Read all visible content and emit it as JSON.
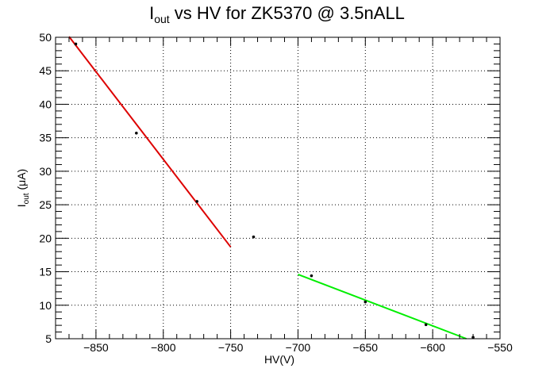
{
  "chart_data": {
    "type": "scatter",
    "title": {
      "main": "I",
      "sub": "out",
      "rest": " vs HV for ZK5370 @ 3.5nALL"
    },
    "xlabel": "HV(V)",
    "ylabel": {
      "main": "I",
      "sub": "out",
      "rest": " (μA)"
    },
    "xlim": [
      -880,
      -550
    ],
    "ylim": [
      5,
      50
    ],
    "x_ticks": [
      -850,
      -800,
      -750,
      -700,
      -650,
      -600,
      -550
    ],
    "y_ticks": [
      5,
      10,
      15,
      20,
      25,
      30,
      35,
      40,
      45,
      50
    ],
    "grid": true,
    "series": [
      {
        "marker": "point",
        "color": "#000000",
        "points": [
          {
            "x": -865,
            "y": 49.0
          },
          {
            "x": -820,
            "y": 35.7
          },
          {
            "x": -775,
            "y": 25.5
          },
          {
            "x": -733,
            "y": 20.2
          },
          {
            "x": -690,
            "y": 14.4
          },
          {
            "x": -650,
            "y": 10.5
          },
          {
            "x": -605,
            "y": 7.1
          },
          {
            "x": -570,
            "y": 5.2
          }
        ]
      }
    ],
    "fits": [
      {
        "color": "#dd0000",
        "x": [
          -870,
          -750
        ],
        "y": [
          50.1,
          18.7
        ]
      },
      {
        "color": "#00ee00",
        "x": [
          -700,
          -575
        ],
        "y": [
          14.6,
          5.0
        ]
      }
    ]
  }
}
